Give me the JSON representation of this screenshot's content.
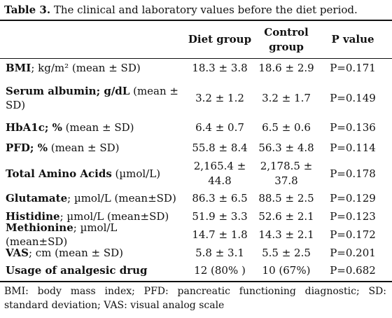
{
  "caption": {
    "label": "Table 3.",
    "text": " The clinical and laboratory values before the diet period."
  },
  "headers": {
    "diet": "Diet group",
    "control": "Control group",
    "pvalue": "P value"
  },
  "rows": [
    {
      "bold": "BMI",
      "rest": "; kg/m² (mean ± SD)",
      "diet": "18.3 ± 3.8",
      "control": "18.6 ± 2.9",
      "p": "P=0.171"
    },
    {
      "bold": "Serum albumin; g/dL",
      "rest": " (mean ± SD)",
      "diet": "3.2 ± 1.2",
      "control": "3.2 ± 1.7",
      "p": "P=0.149"
    },
    {
      "bold": "HbA1c; %",
      "rest": " (mean ± SD)",
      "diet": "6.4 ± 0.7",
      "control": "6.5 ± 0.6",
      "p": "P=0.136"
    },
    {
      "bold": "PFD; %",
      "rest": " (mean ± SD)",
      "diet": "55.8 ± 8.4",
      "control": "56.3 ± 4.8",
      "p": "P=0.114"
    },
    {
      "bold": "Total Amino Acids",
      "rest": " (µmol/L)",
      "diet": "2,165.4 ± 44.8",
      "control": "2,178.5 ± 37.8",
      "p": "P=0.178"
    },
    {
      "bold": "Glutamate",
      "rest": "; µmol/L (mean±SD)",
      "diet": "86.3 ± 6.5",
      "control": "88.5 ± 2.5",
      "p": "P=0.129"
    },
    {
      "bold": "Histidine",
      "rest": "; µmol/L (mean±SD)",
      "diet": "51.9 ± 3.3",
      "control": "52.6 ± 2.1",
      "p": "P=0.123"
    },
    {
      "bold": "Methionine",
      "rest": "; µmol/L (mean±SD)",
      "diet": "14.7 ± 1.8",
      "control": "14.3 ± 2.1",
      "p": "P=0.172"
    },
    {
      "bold": "VAS",
      "rest": "; cm (mean ± SD)",
      "diet": "5.8 ± 3.1",
      "control": "5.5 ± 2.5",
      "p": "P=0.201"
    },
    {
      "bold": "Usage of analgesic drug",
      "rest": "",
      "diet": "12 (80% )",
      "control": "10 (67%)",
      "p": "P=0.682"
    }
  ],
  "footnote": "BMI: body mass index; PFD: pancreatic functioning diagnostic; SD: standard deviation; VAS: visual analog scale"
}
